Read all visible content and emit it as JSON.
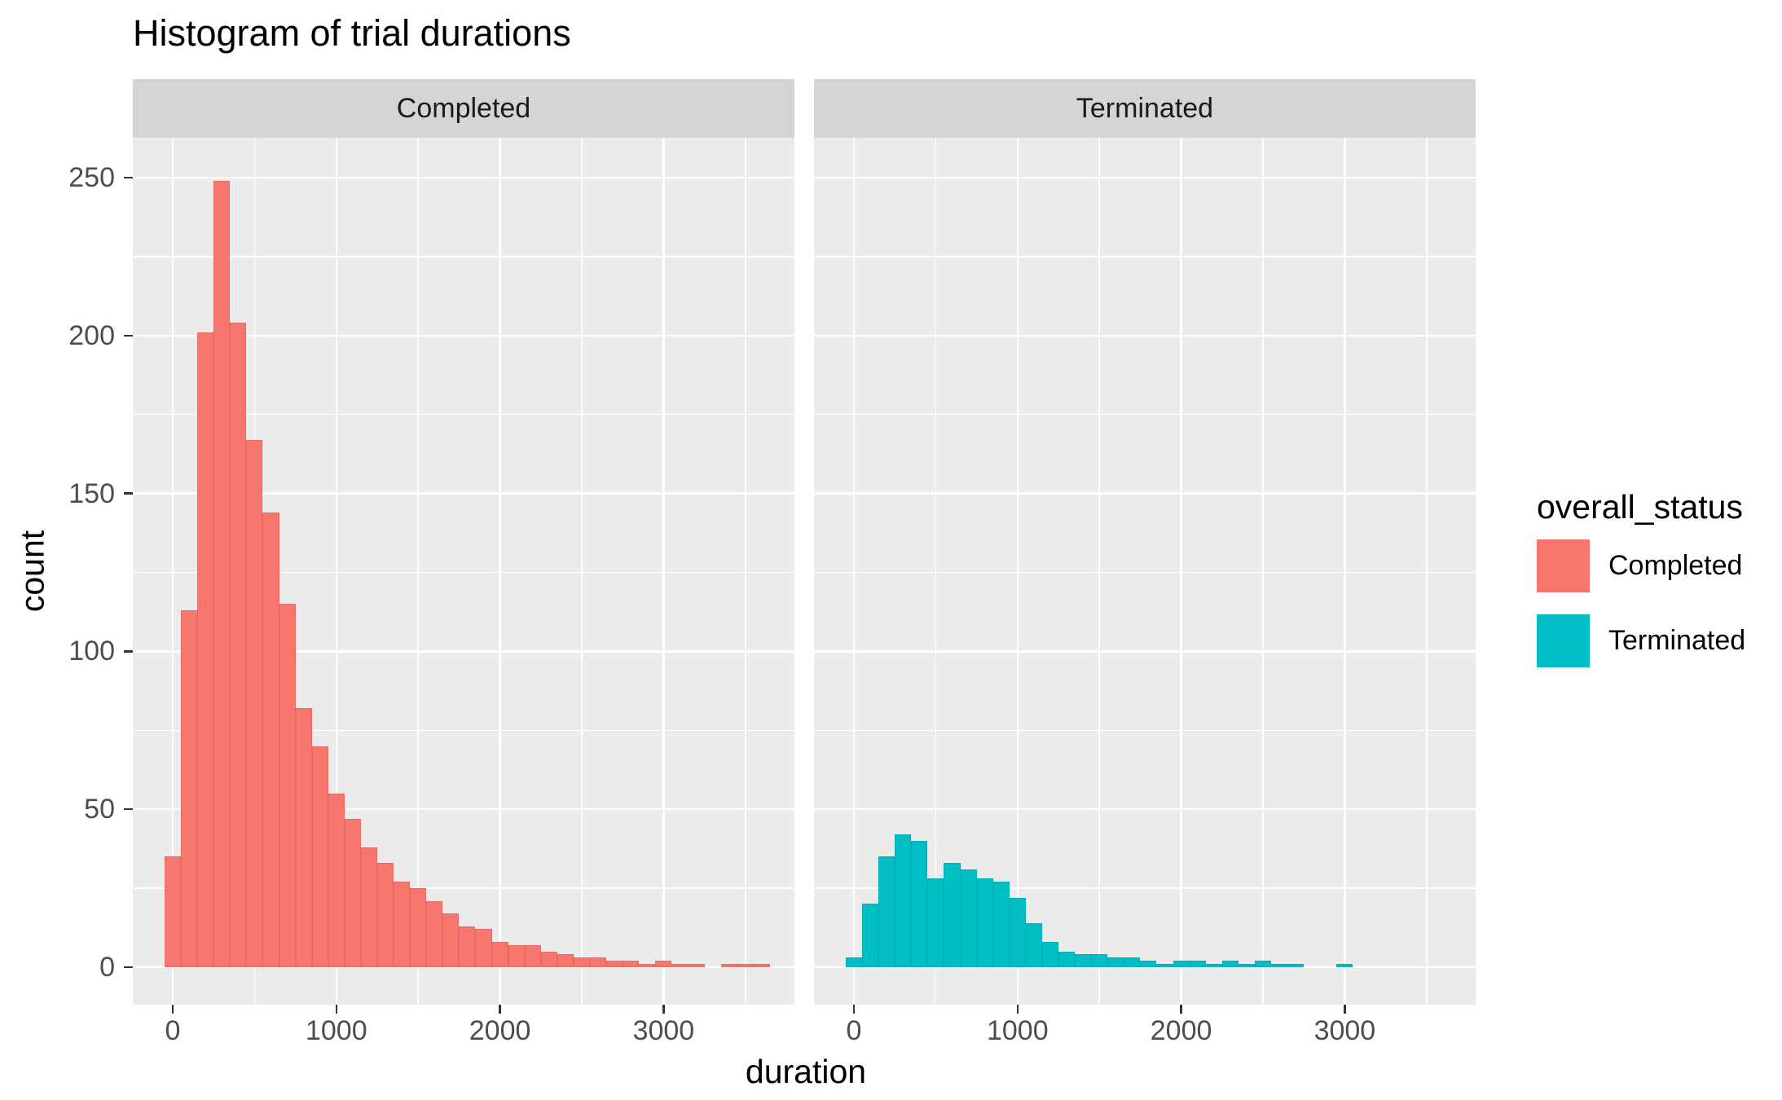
{
  "title": "Histogram of trial durations",
  "axes": {
    "x_title": "duration",
    "y_title": "count",
    "x_ticks": [
      0,
      1000,
      2000,
      3000
    ],
    "x_minor_step": 500,
    "y_ticks": [
      0,
      50,
      100,
      150,
      200,
      250
    ],
    "y_minor_step": 25
  },
  "facets": [
    {
      "label": "Completed"
    },
    {
      "label": "Terminated"
    }
  ],
  "legend": {
    "title": "overall_status",
    "items": [
      {
        "label": "Completed",
        "color": "#F8766D"
      },
      {
        "label": "Terminated",
        "color": "#00BFC4"
      }
    ]
  },
  "colors": {
    "panel_background": "#ebebeb",
    "strip_background": "#d5d5d5",
    "gridline": "#ffffff",
    "axis_text": "#4d4d4d",
    "completed": "#F8766D",
    "terminated": "#00BFC4"
  },
  "chart_data": {
    "type": "bar",
    "subtype": "histogram",
    "title": "Histogram of trial durations",
    "xlabel": "duration",
    "ylabel": "count",
    "grid": true,
    "legend_position": "right",
    "xlim": [
      -250,
      3800
    ],
    "ylim": [
      0,
      250
    ],
    "bin_width": 100,
    "facets": [
      {
        "name": "Completed",
        "color": "#F8766D",
        "bin_starts": [
          -50,
          50,
          150,
          250,
          350,
          450,
          550,
          650,
          750,
          850,
          950,
          1050,
          1150,
          1250,
          1350,
          1450,
          1550,
          1650,
          1750,
          1850,
          1950,
          2050,
          2150,
          2250,
          2350,
          2450,
          2550,
          2650,
          2750,
          2850,
          2950,
          3050,
          3150,
          3250,
          3350,
          3450,
          3550
        ],
        "counts": [
          35,
          113,
          201,
          249,
          204,
          167,
          144,
          115,
          82,
          70,
          55,
          47,
          38,
          33,
          27,
          25,
          21,
          17,
          13,
          12,
          8,
          7,
          7,
          5,
          4,
          3,
          3,
          2,
          2,
          1,
          2,
          1,
          1,
          0,
          1,
          1,
          1
        ]
      },
      {
        "name": "Terminated",
        "color": "#00BFC4",
        "bin_starts": [
          -50,
          50,
          150,
          250,
          350,
          450,
          550,
          650,
          750,
          850,
          950,
          1050,
          1150,
          1250,
          1350,
          1450,
          1550,
          1650,
          1750,
          1850,
          1950,
          2050,
          2150,
          2250,
          2350,
          2450,
          2550,
          2650,
          2750,
          2850,
          2950
        ],
        "counts": [
          3,
          20,
          35,
          42,
          40,
          28,
          33,
          31,
          28,
          27,
          22,
          14,
          8,
          5,
          4,
          4,
          3,
          3,
          2,
          1,
          2,
          2,
          1,
          2,
          1,
          2,
          1,
          1,
          0,
          0,
          1
        ]
      }
    ]
  }
}
